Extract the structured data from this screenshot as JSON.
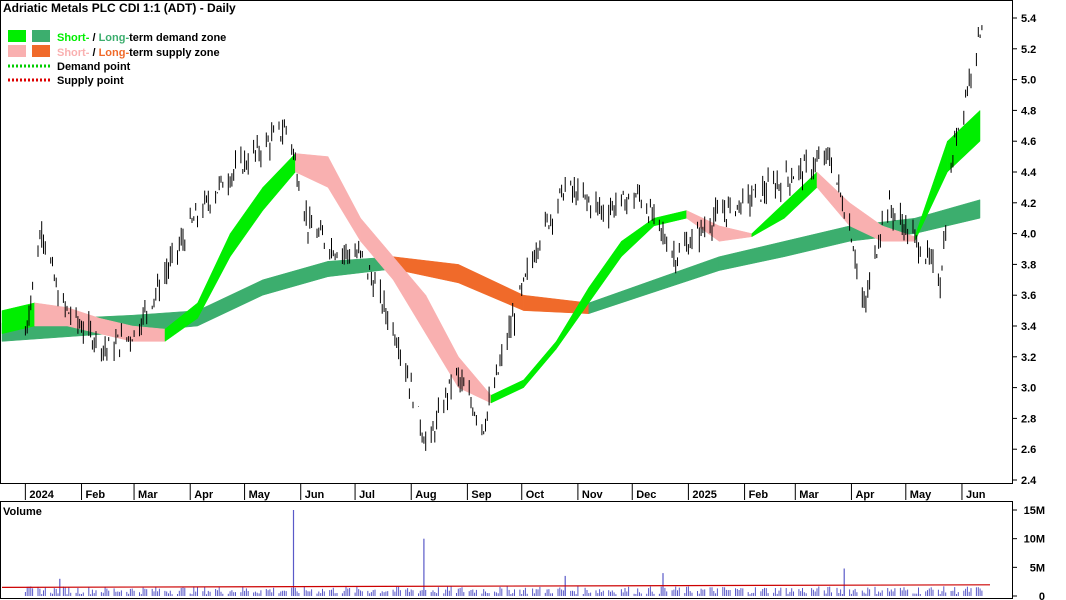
{
  "title": "Adriatic Metals PLC CDI 1:1 (ADT) - Daily",
  "legend": {
    "demand": {
      "short": "Short-",
      "sep": " / ",
      "long": "Long-",
      "rest": "term demand zone"
    },
    "supply": {
      "short": "Short-",
      "sep": " / ",
      "long": "Long-",
      "rest": "term supply zone"
    },
    "demand_point": "Demand point",
    "supply_point": "Supply point"
  },
  "colors": {
    "short_demand": "#00ee00",
    "long_demand": "#3cae6e",
    "short_supply": "#f9b0b0",
    "long_supply": "#f06a2a",
    "demand_point": "#00cc00",
    "supply_point": "#dd0000",
    "volume_bar": "#5a5ac8",
    "volume_avg": "#cc0000",
    "volume_label": "#7070c0"
  },
  "chart_data": [
    {
      "type": "ohlc",
      "ylim": [
        2.35,
        5.5
      ],
      "y_ticks": [
        "2.4",
        "2.6",
        "2.8",
        "3.0",
        "3.2",
        "3.4",
        "3.6",
        "3.8",
        "4.0",
        "4.2",
        "4.4",
        "4.6",
        "4.8",
        "5.0",
        "5.2",
        "5.4"
      ],
      "x_ticks": [
        "2024",
        "Feb",
        "Mar",
        "Apr",
        "May",
        "Jun",
        "Jul",
        "Aug",
        "Sep",
        "Oct",
        "Nov",
        "Dec",
        "2025",
        "Feb",
        "Mar",
        "Apr",
        "May",
        "Jun"
      ],
      "price_path": [
        {
          "date": "2024-01-01",
          "close": 3.35
        },
        {
          "date": "2024-01-10",
          "close": 4.05
        },
        {
          "date": "2024-01-20",
          "close": 3.55
        },
        {
          "date": "2024-02-01",
          "close": 3.4
        },
        {
          "date": "2024-02-15",
          "close": 3.25
        },
        {
          "date": "2024-03-01",
          "close": 3.35
        },
        {
          "date": "2024-04-01",
          "close": 4.05
        },
        {
          "date": "2024-04-20",
          "close": 4.35
        },
        {
          "date": "2024-05-10",
          "close": 4.55
        },
        {
          "date": "2024-05-25",
          "close": 4.7
        },
        {
          "date": "2024-06-05",
          "close": 4.05
        },
        {
          "date": "2024-06-20",
          "close": 3.9
        },
        {
          "date": "2024-07-05",
          "close": 3.85
        },
        {
          "date": "2024-07-25",
          "close": 3.3
        },
        {
          "date": "2024-08-10",
          "close": 2.6
        },
        {
          "date": "2024-08-25",
          "close": 3.1
        },
        {
          "date": "2024-09-10",
          "close": 2.75
        },
        {
          "date": "2024-09-25",
          "close": 3.4
        },
        {
          "date": "2024-10-10",
          "close": 3.95
        },
        {
          "date": "2024-10-25",
          "close": 4.3
        },
        {
          "date": "2024-11-15",
          "close": 4.15
        },
        {
          "date": "2024-12-05",
          "close": 4.25
        },
        {
          "date": "2024-12-25",
          "close": 3.85
        },
        {
          "date": "2025-01-15",
          "close": 4.1
        },
        {
          "date": "2025-02-15",
          "close": 4.3
        },
        {
          "date": "2025-03-20",
          "close": 4.5
        },
        {
          "date": "2025-04-01",
          "close": 4.0
        },
        {
          "date": "2025-04-08",
          "close": 3.5
        },
        {
          "date": "2025-04-20",
          "close": 4.2
        },
        {
          "date": "2025-05-10",
          "close": 3.9
        },
        {
          "date": "2025-05-20",
          "close": 3.7
        },
        {
          "date": "2025-05-28",
          "close": 4.6
        },
        {
          "date": "2025-06-05",
          "close": 5.0
        },
        {
          "date": "2025-06-12",
          "close": 5.38
        }
      ],
      "short_term_zone": {
        "upper": [
          3.5,
          3.55,
          3.52,
          3.45,
          3.4,
          3.38,
          3.55,
          4.0,
          4.3,
          4.52,
          4.5,
          4.1,
          3.85,
          3.6,
          3.2,
          2.95,
          3.05,
          3.3,
          3.65,
          3.95,
          4.1,
          4.15,
          4.05,
          4.0,
          4.2,
          4.4,
          4.2,
          4.05,
          3.98,
          4.6,
          4.8
        ],
        "lower": [
          3.35,
          3.4,
          3.4,
          3.35,
          3.3,
          3.3,
          3.45,
          3.85,
          4.15,
          4.4,
          4.3,
          3.95,
          3.7,
          3.35,
          3.0,
          2.9,
          3.0,
          3.25,
          3.55,
          3.85,
          4.05,
          4.1,
          3.95,
          3.98,
          4.1,
          4.3,
          4.05,
          3.95,
          3.95,
          4.4,
          4.6
        ]
      },
      "long_term_zone": {
        "upper": [
          3.42,
          3.45,
          3.47,
          3.5,
          3.7,
          3.82,
          3.85,
          3.8,
          3.6,
          3.55,
          3.7,
          3.85,
          3.95,
          4.05,
          4.1,
          4.22
        ],
        "lower": [
          3.3,
          3.33,
          3.36,
          3.4,
          3.6,
          3.72,
          3.77,
          3.68,
          3.5,
          3.48,
          3.62,
          3.76,
          3.85,
          3.95,
          4.0,
          4.1
        ]
      }
    },
    {
      "type": "bar",
      "title": "Volume",
      "ylim": [
        0,
        15000000
      ],
      "y_ticks": [
        "0",
        "5M",
        "10M",
        "15M"
      ],
      "spikes": [
        {
          "date": "2024-05-28",
          "value": 15000000
        },
        {
          "date": "2024-08-08",
          "value": 10000000
        },
        {
          "date": "2025-03-28",
          "value": 4800000
        },
        {
          "date": "2024-01-20",
          "value": 3000000
        },
        {
          "date": "2024-10-25",
          "value": 3500000
        },
        {
          "date": "2024-12-18",
          "value": 4000000
        }
      ],
      "average_level": 1500000
    }
  ]
}
